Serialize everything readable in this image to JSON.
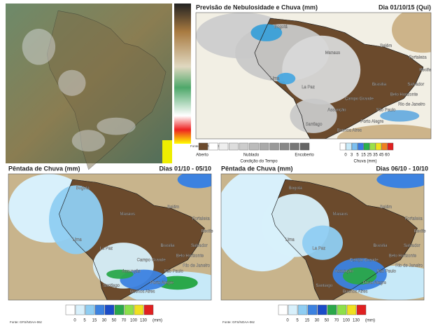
{
  "forecast_panel": {
    "title": "Previsão de Nebulosidade e Chuva (mm)",
    "date": "Dia 01/10/15 (Qui)",
    "condition_legend": {
      "labels": [
        "Aberto",
        "Nublado",
        "Encoberto"
      ],
      "caption": "Condição do Tempo"
    },
    "rain_legend": {
      "ticks": [
        0,
        3,
        5,
        15,
        25,
        35,
        45,
        60
      ],
      "caption": "Chuva (mm)"
    },
    "source": "Fonte: GFS/NOAA-06z"
  },
  "pentad_panels": [
    {
      "title": "Pêntada de Chuva (mm)",
      "dates": "Dias 01/10 - 05/10",
      "legend_ticks": [
        0,
        5,
        15,
        30,
        50,
        70,
        100,
        130
      ],
      "unit": "(mm)",
      "source": "Fonte: GFS/NOAA-06z"
    },
    {
      "title": "Pêntada de Chuva (mm)",
      "dates": "Dias 06/10 - 10/10",
      "legend_ticks": [
        0,
        5,
        15,
        30,
        50,
        70,
        100,
        130
      ],
      "unit": "(mm)",
      "source": "Fonte: GFS/NOAA-06z"
    }
  ],
  "city_labels": [
    "Bogotá",
    "Manaus",
    "Belém",
    "Fortaleza",
    "Recife",
    "Salvador",
    "Brasília",
    "Belo Horizonte",
    "Campo Grande",
    "Rio de Janeiro",
    "São Paulo",
    "Assunção",
    "Porto Alegre",
    "Buenos Aires",
    "Santiago",
    "Lima",
    "La Paz"
  ]
}
